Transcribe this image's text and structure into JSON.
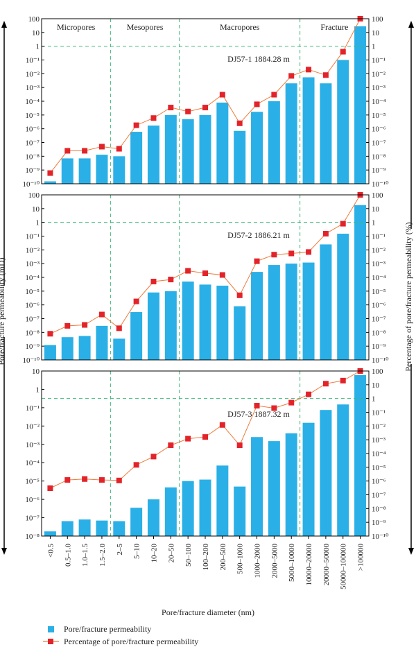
{
  "chart_data": {
    "type": "bar+line",
    "xlabel": "Pore/fracture diameter (nm)",
    "ylabel_left": "Pore/fracture permeability (mD)",
    "ylabel_right": "Percentage of pore/fracture permeability (%)",
    "categories": [
      "<0.5",
      "0.5–1.0",
      "1.0–1.5",
      "1.5–2.0",
      "2–5",
      "5–10",
      "10–20",
      "20–50",
      "50–100",
      "100–200",
      "200–500",
      "500–1000",
      "1000–2000",
      "2000–5000",
      "5000–10000",
      "10000–20000",
      "20000–50000",
      "50000–100000",
      ">100000"
    ],
    "regions": [
      {
        "label": "Micropores",
        "from": 0,
        "to": 3
      },
      {
        "label": "Mesopores",
        "from": 4,
        "to": 7
      },
      {
        "label": "Macropores",
        "from": 8,
        "to": 14
      },
      {
        "label": "Fracture",
        "from": 15,
        "to": 18
      }
    ],
    "legend": {
      "position": "bottom-left",
      "bar": "Pore/fracture permeability",
      "line": "Percentage of pore/fracture permeability"
    },
    "colors": {
      "bar": "#2ab0e6",
      "line": "#f07a3a",
      "marker": "#e2242a",
      "guide": "#3db87a"
    },
    "panels": [
      {
        "label": "DJ57-1 1884.28 m",
        "left_scale": "log",
        "left_range_exp": [
          -10,
          2
        ],
        "left_ticks": [
          "10⁻¹⁰",
          "10⁻⁹",
          "10⁻⁸",
          "10⁻⁷",
          "10⁻⁶",
          "10⁻⁵",
          "10⁻⁴",
          "10⁻³",
          "10⁻²",
          "10⁻¹",
          "1",
          "10",
          "100"
        ],
        "right_scale": "log",
        "right_range_exp": [
          -10,
          2
        ],
        "right_ticks": [
          "10⁻¹⁰",
          "10⁻⁹",
          "10⁻⁸",
          "10⁻⁷",
          "10⁻⁶",
          "10⁻⁵",
          "10⁻⁴",
          "10⁻³",
          "10⁻²",
          "10⁻¹",
          "1",
          "10",
          "100"
        ],
        "guide_value": 1,
        "permeability": [
          1.5e-10,
          7e-09,
          7e-09,
          1.3e-08,
          1e-08,
          6e-07,
          1.7e-06,
          1e-05,
          5e-06,
          1e-05,
          8e-05,
          7e-07,
          1.7e-05,
          0.0001,
          0.002,
          0.0055,
          0.002,
          0.1,
          28
        ],
        "percentage": [
          6e-10,
          2.5e-08,
          2.5e-08,
          5e-08,
          3.5e-08,
          1.8e-06,
          6e-06,
          3.5e-05,
          1.8e-05,
          3.5e-05,
          0.0003,
          2.5e-06,
          6e-05,
          0.0003,
          0.007,
          0.02,
          0.008,
          0.4,
          100
        ]
      },
      {
        "label": "DJ57-2 1886.21 m",
        "left_scale": "log",
        "left_range_exp": [
          -10,
          2
        ],
        "left_ticks": [
          "10⁻¹⁰",
          "10⁻⁹",
          "10⁻⁸",
          "10⁻⁷",
          "10⁻⁶",
          "10⁻⁵",
          "10⁻⁴",
          "10⁻³",
          "10⁻²",
          "10⁻¹",
          "1",
          "10",
          "100"
        ],
        "right_scale": "log",
        "right_range_exp": [
          -10,
          2
        ],
        "right_ticks": [
          "10⁻¹⁰",
          "10⁻⁹",
          "10⁻⁸",
          "10⁻⁷",
          "10⁻⁶",
          "10⁻⁵",
          "10⁻⁴",
          "10⁻³",
          "10⁻²",
          "10⁻¹",
          "1",
          "10",
          "100"
        ],
        "guide_value": 1,
        "permeability": [
          1.2e-09,
          4.5e-09,
          5.5e-09,
          3e-08,
          3.5e-09,
          3e-07,
          8e-06,
          1e-05,
          5e-05,
          3e-05,
          2.5e-05,
          8e-07,
          0.00025,
          0.0008,
          0.001,
          0.0012,
          0.025,
          0.15,
          18
        ],
        "percentage": [
          8e-09,
          3e-08,
          3.5e-08,
          2e-07,
          2e-08,
          1.8e-06,
          5e-05,
          7e-05,
          0.0003,
          0.0002,
          0.00015,
          5e-06,
          0.0015,
          0.0045,
          0.0055,
          0.007,
          0.15,
          0.8,
          100
        ]
      },
      {
        "label": "DJ57-3 1887.32 m",
        "left_scale": "log",
        "left_range_exp": [
          -8,
          1
        ],
        "left_ticks": [
          "10⁻⁸",
          "10⁻⁷",
          "10⁻⁶",
          "10⁻⁵",
          "10⁻⁴",
          "10⁻³",
          "10⁻²",
          "10⁻¹",
          "1",
          "10"
        ],
        "right_scale": "log",
        "right_range_exp": [
          -10,
          2
        ],
        "right_ticks": [
          "10⁻¹⁰",
          "10⁻⁹",
          "10⁻⁸",
          "10⁻⁷",
          "10⁻⁶",
          "10⁻⁵",
          "10⁻⁴",
          "10⁻³",
          "10⁻²",
          "10⁻¹",
          "1",
          "10",
          "100"
        ],
        "guide_value_right": 1,
        "permeability": [
          1.8e-08,
          6.5e-08,
          8e-08,
          7e-08,
          6.5e-08,
          3.5e-07,
          1e-06,
          4.5e-06,
          1e-05,
          1.2e-05,
          7e-05,
          5e-06,
          0.0025,
          0.0015,
          0.004,
          0.015,
          0.075,
          0.15,
          6
        ],
        "percentage": [
          3e-07,
          1.2e-06,
          1.4e-06,
          1.2e-06,
          1.1e-06,
          1.5e-05,
          6e-05,
          0.0004,
          0.0012,
          0.0016,
          0.012,
          0.0004,
          0.3,
          0.2,
          0.5,
          2,
          12,
          20,
          100
        ]
      }
    ]
  }
}
